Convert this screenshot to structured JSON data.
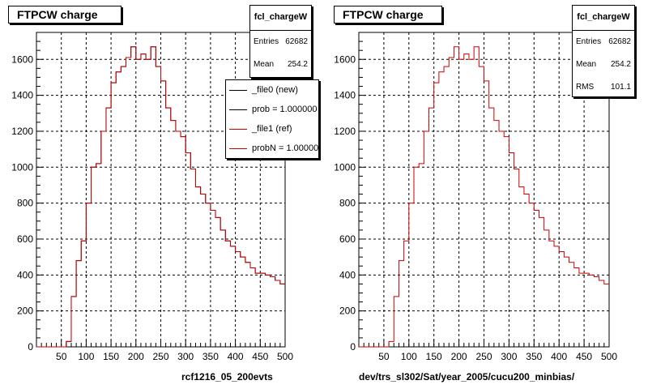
{
  "panels": [
    {
      "title": "FTPCW charge",
      "stats": {
        "name": "fcl_chargeW",
        "rows": [
          {
            "label": "Entries",
            "value": "62682"
          },
          {
            "label": "Mean",
            "value": "254.2"
          }
        ]
      },
      "legend": [
        {
          "label": "_file0 (new)",
          "color": "#000000"
        },
        {
          "label": "prob = 1.000000",
          "color": "#000000"
        },
        {
          "label": "_file1 (ref)",
          "color": "#cc0000"
        },
        {
          "label": "probN = 1.000000",
          "color": "#cc0000"
        }
      ],
      "xlabel": "rcf1216_05_200evts"
    },
    {
      "title": "FTPCW charge",
      "stats": {
        "name": "fcl_chargeW",
        "rows": [
          {
            "label": "Entries",
            "value": "62682"
          },
          {
            "label": "Mean",
            "value": "254.2"
          },
          {
            "label": "RMS",
            "value": "101.1"
          }
        ]
      },
      "xlabel": "dev/trs_sl302/Sat/year_2005/cucu200_minbias/"
    }
  ],
  "colors": {
    "histogram_new": "#000000",
    "histogram_ref": "#cc0000",
    "grid": "#000000"
  },
  "chart_data": [
    {
      "type": "histogram",
      "title": "FTPCW charge",
      "xlabel": "rcf1216_05_200evts",
      "ylabel": "",
      "xlim": [
        0,
        500
      ],
      "ylim": [
        0,
        1750
      ],
      "xticks": [
        50,
        100,
        150,
        200,
        250,
        300,
        350,
        400,
        450,
        500
      ],
      "yticks": [
        0,
        200,
        400,
        600,
        800,
        1000,
        1200,
        1400,
        1600
      ],
      "grid": true,
      "bin_width": 10,
      "bin_edges_start": 0,
      "series": [
        {
          "name": "_file0 (new)",
          "values": [
            0,
            0,
            0,
            0,
            0,
            0,
            30,
            280,
            480,
            590,
            800,
            1000,
            1020,
            1200,
            1330,
            1470,
            1530,
            1560,
            1610,
            1670,
            1600,
            1630,
            1600,
            1670,
            1560,
            1480,
            1330,
            1260,
            1200,
            1170,
            1080,
            990,
            890,
            850,
            800,
            760,
            720,
            650,
            590,
            560,
            530,
            500,
            470,
            440,
            410,
            410,
            400,
            390,
            370,
            350
          ]
        },
        {
          "name": "_file1 (ref)",
          "values": [
            0,
            0,
            0,
            0,
            0,
            0,
            30,
            280,
            480,
            590,
            800,
            1000,
            1020,
            1200,
            1330,
            1470,
            1530,
            1560,
            1610,
            1670,
            1600,
            1630,
            1600,
            1670,
            1560,
            1480,
            1330,
            1260,
            1200,
            1170,
            1080,
            990,
            890,
            850,
            800,
            760,
            720,
            650,
            590,
            560,
            530,
            500,
            470,
            440,
            410,
            410,
            400,
            390,
            370,
            350
          ]
        }
      ]
    },
    {
      "type": "histogram",
      "title": "FTPCW charge",
      "xlabel": "dev/trs_sl302/Sat/year_2005/cucu200_minbias/",
      "ylabel": "",
      "xlim": [
        0,
        500
      ],
      "ylim": [
        0,
        1750
      ],
      "xticks": [
        50,
        100,
        150,
        200,
        250,
        300,
        350,
        400,
        450,
        500
      ],
      "yticks": [
        0,
        200,
        400,
        600,
        800,
        1000,
        1200,
        1400,
        1600
      ],
      "grid": true,
      "bin_width": 10,
      "bin_edges_start": 0,
      "series": [
        {
          "values": [
            0,
            0,
            0,
            0,
            0,
            0,
            30,
            280,
            480,
            590,
            800,
            1000,
            1020,
            1200,
            1330,
            1470,
            1530,
            1560,
            1610,
            1670,
            1600,
            1630,
            1600,
            1670,
            1560,
            1480,
            1330,
            1260,
            1200,
            1170,
            1080,
            990,
            890,
            850,
            800,
            760,
            720,
            650,
            590,
            560,
            530,
            500,
            470,
            440,
            410,
            410,
            400,
            390,
            370,
            350
          ]
        }
      ]
    }
  ]
}
